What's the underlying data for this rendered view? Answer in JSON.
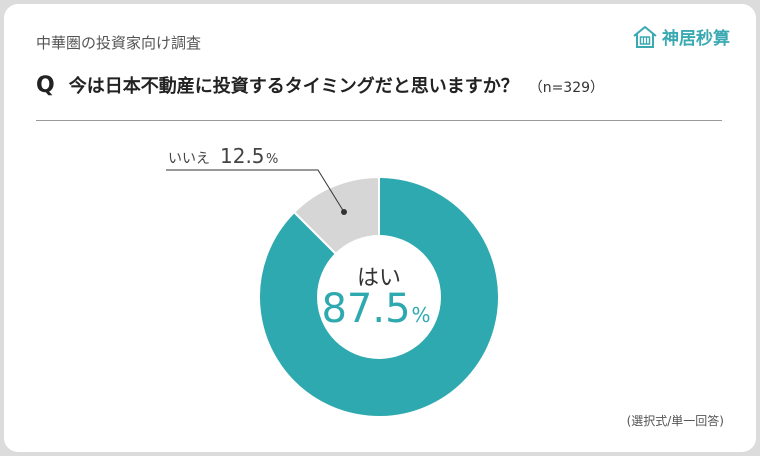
{
  "header": {
    "survey_name": "中華圏の投資家向け調査",
    "brand_name": "神居秒算"
  },
  "question": {
    "mark": "Q",
    "text": "今は日本不動産に投資するタイミングだと思いますか？",
    "sample": "（n=329）"
  },
  "footnote": "(選択式/単一回答)",
  "colors": {
    "yes": "#2fa9b0",
    "no": "#d6d6d6",
    "brand": "#3aa9b2"
  },
  "chart_data": {
    "type": "pie",
    "title": "今は日本不動産に投資するタイミングだと思いますか？",
    "donut": true,
    "unit": "%",
    "categories": [
      "はい",
      "いいえ"
    ],
    "values": [
      87.5,
      12.5
    ],
    "value_labels": [
      "87.5",
      "12.5"
    ]
  }
}
